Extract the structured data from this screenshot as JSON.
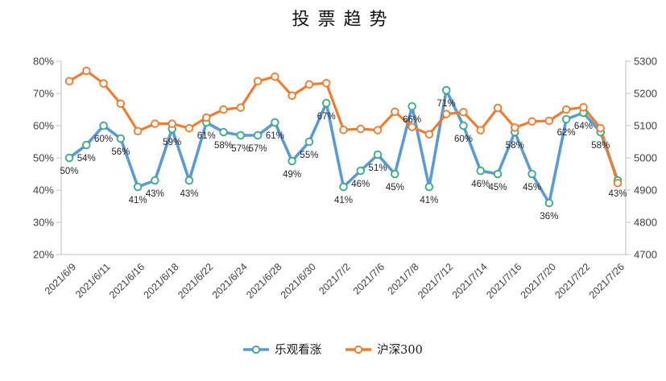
{
  "chart_data": {
    "type": "line",
    "title": "投票趋势",
    "categories": [
      "2021/6/9",
      "2021/6/11",
      "2021/6/16",
      "2021/6/18",
      "2021/6/22",
      "2021/6/24",
      "2021/6/28",
      "2021/6/30",
      "2021/7/2",
      "2021/7/6",
      "2021/7/8",
      "2021/7/12",
      "2021/7/14",
      "2021/7/16",
      "2021/7/20",
      "2021/7/22",
      "2021/7/26"
    ],
    "category_tick_interval": 2,
    "n_points": 33,
    "series": [
      {
        "name": "乐观看涨",
        "yaxis": "left",
        "unit": "%",
        "line_color": "#5B9BD5",
        "marker_stroke": "#3FAE80",
        "marker_fill": "#FFFFFF",
        "data_labels": true,
        "values": [
          50,
          54,
          60,
          56,
          41,
          43,
          59,
          43,
          61,
          58,
          57,
          57,
          61,
          49,
          55,
          67,
          41,
          46,
          51,
          45,
          66,
          41,
          71,
          60,
          46,
          45,
          58,
          45,
          36,
          62,
          64,
          58,
          43
        ]
      },
      {
        "name": "沪深300",
        "yaxis": "right",
        "unit": "",
        "line_color": "#ED7D31",
        "marker_stroke": "#ED7D31",
        "marker_fill": "#FFFFFF",
        "data_labels": false,
        "values": [
          5238,
          5270,
          5231,
          5168,
          5083,
          5106,
          5106,
          5092,
          5125,
          5150,
          5156,
          5238,
          5252,
          5193,
          5228,
          5232,
          5087,
          5090,
          5086,
          5143,
          5096,
          5073,
          5136,
          5142,
          5086,
          5155,
          5094,
          5113,
          5115,
          5150,
          5157,
          5092,
          4922
        ]
      }
    ],
    "left_axis": {
      "min": 20,
      "max": 80,
      "step": 10,
      "labels": [
        "20%",
        "30%",
        "40%",
        "50%",
        "60%",
        "70%",
        "80%"
      ]
    },
    "right_axis": {
      "min": 4700,
      "max": 5300,
      "step": 100,
      "labels": [
        "4700",
        "4800",
        "4900",
        "5000",
        "5100",
        "5200",
        "5300"
      ]
    },
    "grid": false,
    "legend_position": "bottom",
    "axis_line_color": "#BFBFBF",
    "axis_label_color": "#404040",
    "data_label_color": "#262626"
  }
}
